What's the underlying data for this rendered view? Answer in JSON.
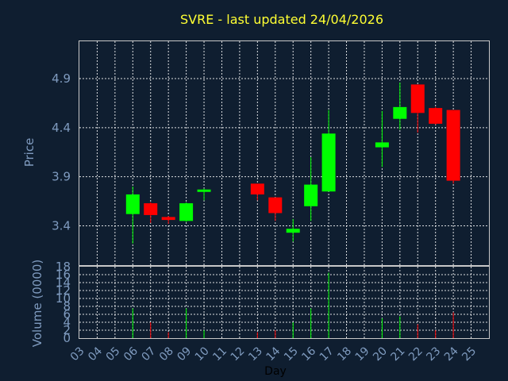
{
  "chart_data": {
    "type": "candlestick",
    "title": "SVRE - last updated 24/04/2026",
    "xlabel": "Day",
    "price_ylabel": "Price",
    "volume_ylabel": "Volume (0000)",
    "price_ylim": [
      3.0,
      5.28
    ],
    "price_ticks": [
      "3.4",
      "3.9",
      "4.4",
      "4.9"
    ],
    "volume_ylim": [
      0,
      18
    ],
    "volume_ticks": [
      "0",
      "2",
      "4",
      "6",
      "8",
      "10",
      "12",
      "14",
      "16",
      "18"
    ],
    "x_ticks": [
      "03",
      "04",
      "05",
      "06",
      "07",
      "08",
      "09",
      "10",
      "11",
      "12",
      "13",
      "14",
      "15",
      "16",
      "17",
      "18",
      "19",
      "20",
      "21",
      "22",
      "23",
      "24",
      "25"
    ],
    "up_color": "#00ff00",
    "down_color": "#ff0000",
    "grid": true,
    "candles": [
      {
        "day": "06",
        "open": 3.52,
        "high": 3.8,
        "low": 3.22,
        "close": 3.72,
        "volume": 7.5
      },
      {
        "day": "07",
        "open": 3.63,
        "high": 3.64,
        "low": 3.43,
        "close": 3.51,
        "volume": 4
      },
      {
        "day": "08",
        "open": 3.49,
        "high": 3.5,
        "low": 3.42,
        "close": 3.46,
        "volume": 1.5
      },
      {
        "day": "09",
        "open": 3.45,
        "high": 3.64,
        "low": 3.44,
        "close": 3.63,
        "volume": 7.5
      },
      {
        "day": "10",
        "open": 3.75,
        "high": 3.78,
        "low": 3.66,
        "close": 3.77,
        "volume": 2
      },
      {
        "day": "13",
        "open": 3.83,
        "high": 3.83,
        "low": 3.66,
        "close": 3.72,
        "volume": 1.5
      },
      {
        "day": "14",
        "open": 3.69,
        "high": 3.69,
        "low": 3.45,
        "close": 3.53,
        "volume": 2
      },
      {
        "day": "15",
        "open": 3.33,
        "high": 3.47,
        "low": 3.24,
        "close": 3.37,
        "volume": 4
      },
      {
        "day": "16",
        "open": 3.6,
        "high": 4.1,
        "low": 3.45,
        "close": 3.82,
        "volume": 7.5
      },
      {
        "day": "17",
        "open": 3.75,
        "high": 4.58,
        "low": 3.75,
        "close": 4.34,
        "volume": 16.5
      },
      {
        "day": "20",
        "open": 4.2,
        "high": 4.57,
        "low": 4.0,
        "close": 4.25,
        "volume": 5
      },
      {
        "day": "21",
        "open": 4.49,
        "high": 4.86,
        "low": 4.38,
        "close": 4.61,
        "volume": 5.5
      },
      {
        "day": "22",
        "open": 4.84,
        "high": 4.84,
        "low": 4.35,
        "close": 4.55,
        "volume": 3.5
      },
      {
        "day": "23",
        "open": 4.6,
        "high": 4.61,
        "low": 4.43,
        "close": 4.44,
        "volume": 2
      },
      {
        "day": "24",
        "open": 4.58,
        "high": 4.58,
        "low": 3.83,
        "close": 3.86,
        "volume": 6.5
      }
    ]
  }
}
